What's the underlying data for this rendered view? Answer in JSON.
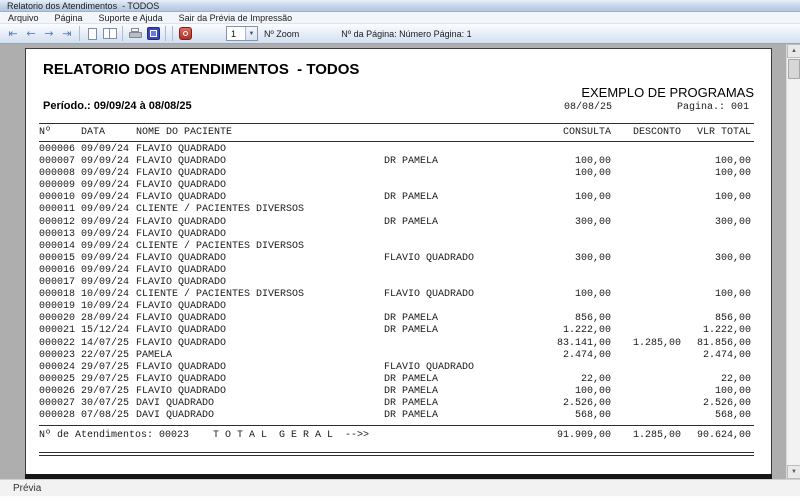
{
  "window": {
    "title": "Relatorio dos Atendimentos  - TODOS"
  },
  "menu": {
    "items": [
      "Arquivo",
      "Página",
      "Suporte e Ajuda",
      "Sair da Prévia de Impressão"
    ]
  },
  "toolbar": {
    "nav_icons": [
      "⇤",
      "←",
      "→",
      "⇥"
    ],
    "zoom_value": "1",
    "dropdown_arrow": "▼",
    "zoom_label": "Nº Zoom",
    "page_info": "Nº da Página: Número Página: 1",
    "scroll_up": "▲",
    "scroll_down": "▼"
  },
  "report": {
    "title": "RELATORIO DOS ATENDIMENTOS  - TODOS",
    "company": "EXEMPLO DE PROGRAMAS",
    "period": "Período.: 09/09/24 à 08/08/25",
    "date": "08/08/25",
    "page_number": "Pagina.: 001",
    "columns": [
      "Nº",
      "DATA",
      "NOME DO PACIENTE",
      "CONSULTA",
      "DESCONTO",
      "VLR TOTAL"
    ],
    "rows": [
      [
        "000006",
        "09/09/24",
        "FLAVIO QUADRADO",
        "",
        "",
        "",
        ""
      ],
      [
        "000007",
        "09/09/24",
        "FLAVIO QUADRADO",
        "DR PAMELA",
        "100,00",
        "",
        "100,00"
      ],
      [
        "000008",
        "09/09/24",
        "FLAVIO QUADRADO",
        "",
        "100,00",
        "",
        "100,00"
      ],
      [
        "000009",
        "09/09/24",
        "FLAVIO QUADRADO",
        "",
        "",
        "",
        ""
      ],
      [
        "000010",
        "09/09/24",
        "FLAVIO QUADRADO",
        "DR PAMELA",
        "100,00",
        "",
        "100,00"
      ],
      [
        "000011",
        "09/09/24",
        "CLIENTE / PACIENTES DIVERSOS",
        "",
        "",
        "",
        ""
      ],
      [
        "000012",
        "09/09/24",
        "FLAVIO QUADRADO",
        "DR PAMELA",
        "300,00",
        "",
        "300,00"
      ],
      [
        "000013",
        "09/09/24",
        "FLAVIO QUADRADO",
        "",
        "",
        "",
        ""
      ],
      [
        "000014",
        "09/09/24",
        "CLIENTE / PACIENTES DIVERSOS",
        "",
        "",
        "",
        ""
      ],
      [
        "000015",
        "09/09/24",
        "FLAVIO QUADRADO",
        "FLAVIO QUADRADO",
        "300,00",
        "",
        "300,00"
      ],
      [
        "000016",
        "09/09/24",
        "FLAVIO QUADRADO",
        "",
        "",
        "",
        ""
      ],
      [
        "000017",
        "09/09/24",
        "FLAVIO QUADRADO",
        "",
        "",
        "",
        ""
      ],
      [
        "000018",
        "10/09/24",
        "CLIENTE / PACIENTES DIVERSOS",
        "FLAVIO QUADRADO",
        "100,00",
        "",
        "100,00"
      ],
      [
        "000019",
        "10/09/24",
        "FLAVIO QUADRADO",
        "",
        "",
        "",
        ""
      ],
      [
        "000020",
        "28/09/24",
        "FLAVIO QUADRADO",
        "DR PAMELA",
        "856,00",
        "",
        "856,00"
      ],
      [
        "000021",
        "15/12/24",
        "FLAVIO QUADRADO",
        "DR PAMELA",
        "1.222,00",
        "",
        "1.222,00"
      ],
      [
        "000022",
        "14/07/25",
        "FLAVIO QUADRADO",
        "",
        "83.141,00",
        "1.285,00",
        "81.856,00"
      ],
      [
        "000023",
        "22/07/25",
        "PAMELA",
        "",
        "2.474,00",
        "",
        "2.474,00"
      ],
      [
        "000024",
        "29/07/25",
        "FLAVIO QUADRADO",
        "FLAVIO QUADRADO",
        "",
        "",
        ""
      ],
      [
        "000025",
        "29/07/25",
        "FLAVIO QUADRADO",
        "DR PAMELA",
        "22,00",
        "",
        "22,00"
      ],
      [
        "000026",
        "29/07/25",
        "FLAVIO QUADRADO",
        "DR PAMELA",
        "100,00",
        "",
        "100,00"
      ],
      [
        "000027",
        "30/07/25",
        "DAVI QUADRADO",
        "DR PAMELA",
        "2.526,00",
        "",
        "2.526,00"
      ],
      [
        "000028",
        "07/08/25",
        "DAVI QUADRADO",
        "DR PAMELA",
        "568,00",
        "",
        "568,00"
      ]
    ],
    "totals": {
      "count_label": "Nº de Atendimentos: 00023",
      "label": "T O T A L  G E R A L  -->>",
      "consulta": "91.909,00",
      "desconto": "1.285,00",
      "vlr_total": "90.624,00"
    }
  },
  "statusbar": {
    "text": "Prévia"
  },
  "colors": {
    "titlebar_gradient_top": "#e7eef8",
    "titlebar_gradient_bottom": "#b4c6de",
    "preview_bg": "#aeaeae",
    "nav_blue": "#5b7cba",
    "zoom_icon_blue": "#3a47b8",
    "exit_icon_red": "#b03127"
  }
}
